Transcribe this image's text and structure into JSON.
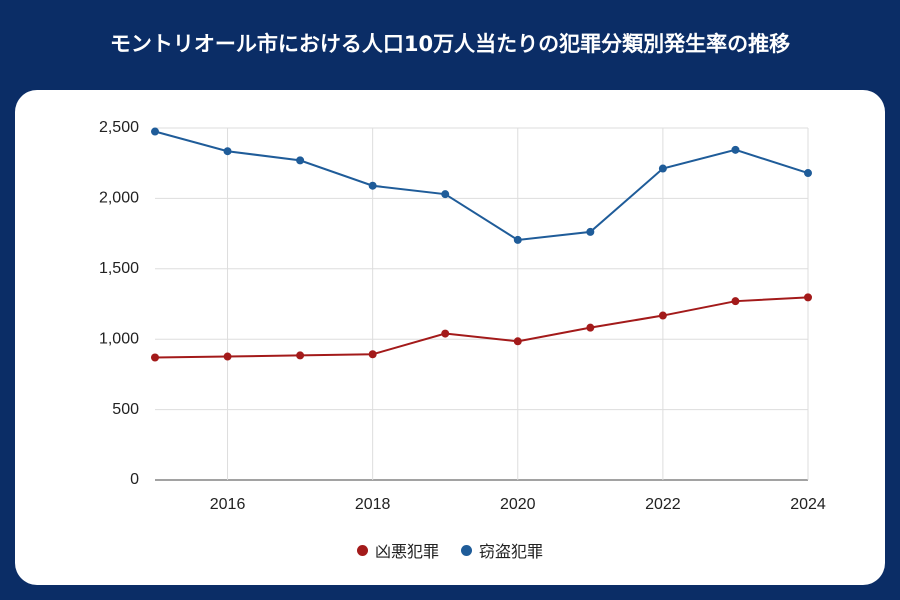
{
  "chart_data": {
    "type": "line",
    "title": "モントリオール市における人口10万人当たりの犯罪分類別発生率の推移",
    "x": [
      2015,
      2016,
      2017,
      2018,
      2019,
      2020,
      2021,
      2022,
      2023,
      2024
    ],
    "series": [
      {
        "name": "凶悪犯罪",
        "color": "#a31a1a",
        "values": [
          870,
          877,
          885,
          893,
          1040,
          985,
          1082,
          1168,
          1270,
          1297
        ]
      },
      {
        "name": "窃盗犯罪",
        "color": "#1f5c99",
        "values": [
          2475,
          2335,
          2270,
          2090,
          2030,
          1705,
          1762,
          2212,
          2345,
          2180
        ]
      }
    ],
    "xlim": [
      2015,
      2024
    ],
    "xticks": [
      2016,
      2018,
      2020,
      2022,
      2024
    ],
    "ylim": [
      0,
      2500
    ],
    "yticks": [
      0,
      500,
      {
        "value": 1000,
        "label": "1,000"
      },
      {
        "value": 1500,
        "label": "1,500"
      },
      {
        "value": 2000,
        "label": "2,000"
      },
      {
        "value": 2500,
        "label": "2,500"
      }
    ],
    "grid": true
  }
}
